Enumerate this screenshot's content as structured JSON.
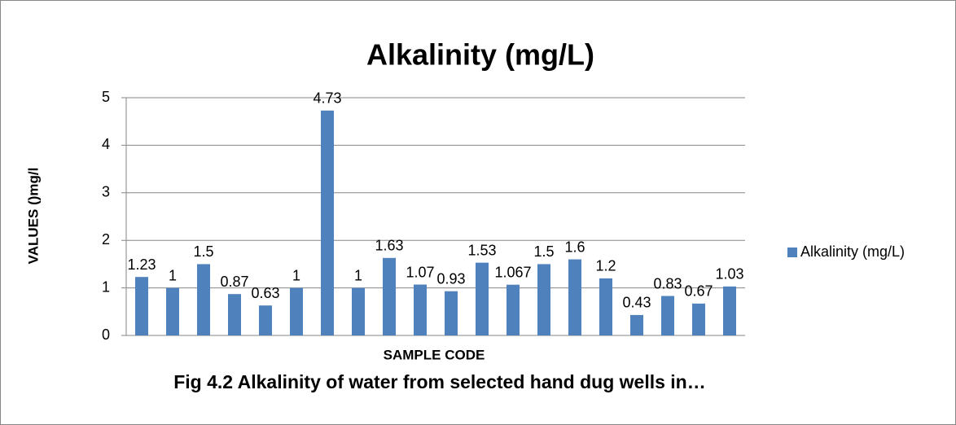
{
  "chart_data": {
    "type": "bar",
    "title": "Alkalinity (mg/L)",
    "y_label": "VALUES ()mg/l",
    "x_label": "SAMPLE CODE",
    "caption": "Fig 4.2 Alkalinity of water from selected hand dug wells in…",
    "categories": [
      null,
      null,
      null,
      null,
      null,
      null,
      null,
      null,
      null,
      null,
      null,
      null,
      null,
      null,
      null,
      null,
      null,
      null,
      null,
      null
    ],
    "series": [
      {
        "name": "Alkalinity (mg/L)",
        "color": "#4f81bd",
        "values": [
          1.23,
          1,
          1.5,
          0.87,
          0.63,
          1,
          4.73,
          1,
          1.63,
          1.07,
          0.93,
          1.53,
          1.067,
          1.5,
          1.6,
          1.2,
          0.43,
          0.83,
          0.67,
          1.03
        ]
      }
    ],
    "ylim": [
      0,
      5
    ],
    "yticks": [
      0,
      1,
      2,
      3,
      4,
      5
    ],
    "grid": true,
    "legend": "right"
  }
}
